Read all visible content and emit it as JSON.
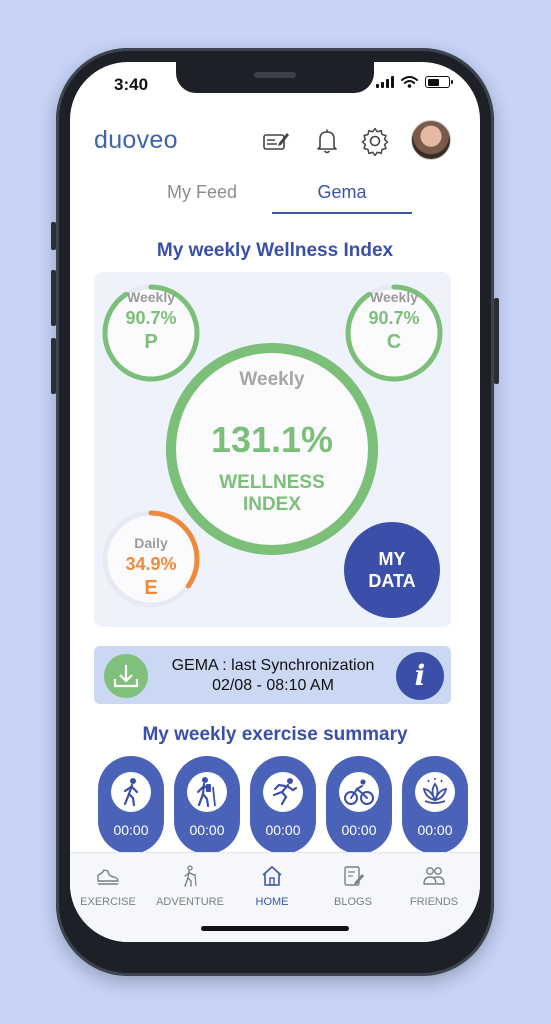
{
  "status": {
    "time": "3:40"
  },
  "header": {
    "brand": "duoveo"
  },
  "tabs": [
    {
      "label": "My Feed",
      "active": false
    },
    {
      "label": "Gema",
      "active": true
    }
  ],
  "wellness": {
    "title": "My weekly Wellness Index",
    "p": {
      "period": "Weekly",
      "value": "90.7%",
      "letter": "P",
      "fraction": 0.907,
      "color": "#7cbf78"
    },
    "c": {
      "period": "Weekly",
      "value": "90.7%",
      "letter": "C",
      "fraction": 0.907,
      "color": "#7cbf78"
    },
    "main": {
      "period": "Weekly",
      "value": "131.1%",
      "label_line1": "WELLNESS",
      "label_line2": "INDEX",
      "fraction": 1.0,
      "color": "#7cbf78"
    },
    "e": {
      "period": "Daily",
      "value": "34.9%",
      "letter": "E",
      "fraction": 0.349,
      "color": "#ee8a3c"
    },
    "my_data_line1": "MY",
    "my_data_line2": "DATA"
  },
  "sync": {
    "line1": "GEMA : last Synchronization",
    "line2": "02/08 - 08:10 AM",
    "info_icon": "i"
  },
  "exercise": {
    "title": "My weekly exercise summary",
    "items": [
      {
        "icon": "walking-icon",
        "time": "00:00"
      },
      {
        "icon": "hiking-icon",
        "time": "00:00"
      },
      {
        "icon": "running-icon",
        "time": "00:00"
      },
      {
        "icon": "cycling-icon",
        "time": "00:00"
      },
      {
        "icon": "lotus-icon",
        "time": "00:00"
      }
    ]
  },
  "nav": [
    {
      "label": "EXERCISE",
      "icon": "shoe-icon",
      "active": false
    },
    {
      "label": "ADVENTURE",
      "icon": "hiker-icon",
      "active": false
    },
    {
      "label": "HOME",
      "icon": "home-icon",
      "active": true
    },
    {
      "label": "BLOGS",
      "icon": "blog-icon",
      "active": false
    },
    {
      "label": "FRIENDS",
      "icon": "friends-icon",
      "active": false
    }
  ],
  "colors": {
    "accent": "#3a57a6",
    "green": "#7cbf78",
    "orange": "#ee8a3c",
    "background": "#c7d3f7"
  }
}
